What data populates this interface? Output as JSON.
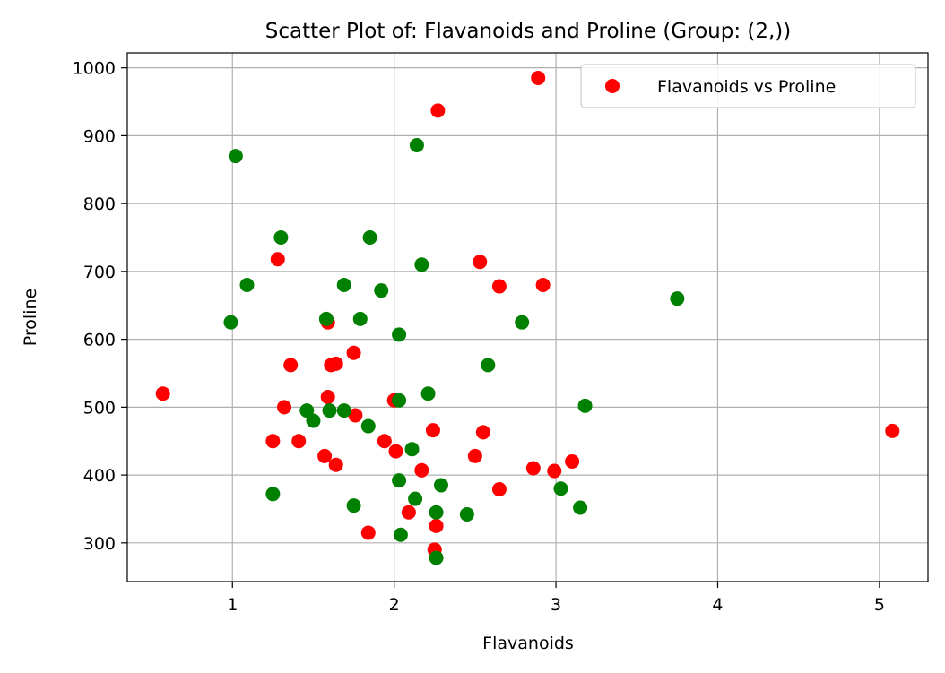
{
  "chart_data": {
    "type": "scatter",
    "title": "Scatter Plot of: Flavanoids and Proline (Group: (2,))",
    "xlabel": "Flavanoids",
    "ylabel": "Proline",
    "xlim": [
      0.35,
      5.3
    ],
    "ylim": [
      243,
      1022
    ],
    "xticks": [
      1,
      2,
      3,
      4,
      5
    ],
    "yticks": [
      300,
      400,
      500,
      600,
      700,
      800,
      900,
      1000
    ],
    "grid": true,
    "legend": {
      "position": "top-right",
      "entries": [
        "Flavanoids vs Proline"
      ]
    },
    "series": [
      {
        "name": "Flavanoids vs Proline",
        "color": "#ff0000",
        "points": [
          [
            0.57,
            520
          ],
          [
            1.25,
            450
          ],
          [
            1.28,
            718
          ],
          [
            1.32,
            500
          ],
          [
            1.36,
            562
          ],
          [
            1.41,
            450
          ],
          [
            1.57,
            428
          ],
          [
            1.59,
            515
          ],
          [
            1.59,
            625
          ],
          [
            1.61,
            562
          ],
          [
            1.64,
            564
          ],
          [
            1.64,
            415
          ],
          [
            1.75,
            580
          ],
          [
            1.76,
            488
          ],
          [
            1.84,
            315
          ],
          [
            1.94,
            450
          ],
          [
            2.0,
            510
          ],
          [
            2.01,
            435
          ],
          [
            2.09,
            345
          ],
          [
            2.17,
            407
          ],
          [
            2.24,
            466
          ],
          [
            2.25,
            290
          ],
          [
            2.26,
            325
          ],
          [
            2.27,
            937
          ],
          [
            2.5,
            428
          ],
          [
            2.53,
            714
          ],
          [
            2.55,
            463
          ],
          [
            2.65,
            379
          ],
          [
            2.65,
            678
          ],
          [
            2.86,
            410
          ],
          [
            2.89,
            985
          ],
          [
            2.92,
            680
          ],
          [
            2.99,
            406
          ],
          [
            3.1,
            420
          ],
          [
            5.08,
            465
          ]
        ]
      },
      {
        "name": "",
        "color": "#008000",
        "points": [
          [
            0.99,
            625
          ],
          [
            1.02,
            870
          ],
          [
            1.09,
            680
          ],
          [
            1.25,
            372
          ],
          [
            1.3,
            750
          ],
          [
            1.46,
            495
          ],
          [
            1.5,
            480
          ],
          [
            1.58,
            630
          ],
          [
            1.6,
            495
          ],
          [
            1.69,
            680
          ],
          [
            1.69,
            495
          ],
          [
            1.75,
            355
          ],
          [
            1.79,
            630
          ],
          [
            1.84,
            472
          ],
          [
            1.85,
            750
          ],
          [
            1.92,
            672
          ],
          [
            2.03,
            392
          ],
          [
            2.03,
            607
          ],
          [
            2.03,
            510
          ],
          [
            2.04,
            312
          ],
          [
            2.11,
            438
          ],
          [
            2.13,
            365
          ],
          [
            2.14,
            886
          ],
          [
            2.17,
            710
          ],
          [
            2.21,
            520
          ],
          [
            2.26,
            345
          ],
          [
            2.26,
            278
          ],
          [
            2.29,
            385
          ],
          [
            2.45,
            342
          ],
          [
            2.58,
            562
          ],
          [
            2.79,
            625
          ],
          [
            3.03,
            380
          ],
          [
            3.15,
            352
          ],
          [
            3.18,
            502
          ],
          [
            3.75,
            660
          ]
        ]
      }
    ]
  }
}
